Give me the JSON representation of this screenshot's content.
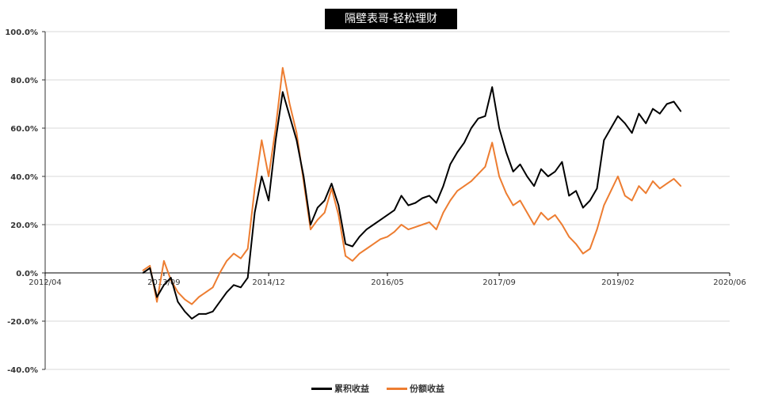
{
  "chart_data": {
    "type": "line",
    "title": "隔壁表哥-轻松理财",
    "xlabel": "",
    "ylabel": "",
    "ylim": [
      -40,
      100
    ],
    "y_ticks": [
      100,
      80,
      60,
      40,
      20,
      0,
      -20,
      -40
    ],
    "y_tick_labels": [
      "100.0%",
      "80.0%",
      "60.0%",
      "40.0%",
      "20.0%",
      "0.0%",
      "-20.0%",
      "-40.0%"
    ],
    "x_ticks": [
      "2012/04",
      "2013/09",
      "2014/12",
      "2016/05",
      "2017/09",
      "2019/02",
      "2020/06"
    ],
    "grid": "horizontal",
    "legend_position": "bottom",
    "colors": {
      "series_a": "#000000",
      "series_b": "#ED7D31",
      "grid": "#d9d9d9"
    },
    "series": [
      {
        "name": "累积收益",
        "color": "#000000",
        "x": [
          "2013/06",
          "2013/07",
          "2013/08",
          "2013/09",
          "2013/10",
          "2013/11",
          "2013/12",
          "2014/01",
          "2014/02",
          "2014/03",
          "2014/04",
          "2014/05",
          "2014/06",
          "2014/07",
          "2014/08",
          "2014/09",
          "2014/10",
          "2014/11",
          "2014/12",
          "2015/01",
          "2015/02",
          "2015/03",
          "2015/04",
          "2015/05",
          "2015/06",
          "2015/07",
          "2015/08",
          "2015/09",
          "2015/10",
          "2015/11",
          "2015/12",
          "2016/01",
          "2016/02",
          "2016/03",
          "2016/04",
          "2016/05",
          "2016/06",
          "2016/07",
          "2016/08",
          "2016/09",
          "2016/10",
          "2016/11",
          "2016/12",
          "2017/01",
          "2017/02",
          "2017/03",
          "2017/04",
          "2017/05",
          "2017/06",
          "2017/07",
          "2017/08",
          "2017/09",
          "2017/10",
          "2017/11",
          "2017/12",
          "2018/01",
          "2018/02",
          "2018/03",
          "2018/04",
          "2018/05",
          "2018/06",
          "2018/07",
          "2018/08",
          "2018/09",
          "2018/10",
          "2018/11",
          "2018/12",
          "2019/01",
          "2019/02",
          "2019/03",
          "2019/04",
          "2019/05",
          "2019/06",
          "2019/07",
          "2019/08",
          "2019/09",
          "2019/10",
          "2019/11"
        ],
        "values": [
          0,
          2,
          -10,
          -5,
          -2,
          -12,
          -16,
          -19,
          -17,
          -17,
          -16,
          -12,
          -8,
          -5,
          -6,
          -2,
          25,
          40,
          30,
          55,
          75,
          65,
          55,
          40,
          20,
          27,
          30,
          37,
          28,
          12,
          11,
          15,
          18,
          20,
          22,
          24,
          26,
          32,
          28,
          29,
          31,
          32,
          29,
          36,
          45,
          50,
          54,
          60,
          64,
          65,
          77,
          60,
          50,
          42,
          45,
          40,
          36,
          43,
          40,
          42,
          46,
          32,
          34,
          27,
          30,
          35,
          55,
          60,
          65,
          62,
          58,
          66,
          62,
          68,
          66,
          70,
          71,
          67
        ]
      },
      {
        "name": "份额收益",
        "color": "#ED7D31",
        "x": [
          "2013/06",
          "2013/07",
          "2013/08",
          "2013/09",
          "2013/10",
          "2013/11",
          "2013/12",
          "2014/01",
          "2014/02",
          "2014/03",
          "2014/04",
          "2014/05",
          "2014/06",
          "2014/07",
          "2014/08",
          "2014/09",
          "2014/10",
          "2014/11",
          "2014/12",
          "2015/01",
          "2015/02",
          "2015/03",
          "2015/04",
          "2015/05",
          "2015/06",
          "2015/07",
          "2015/08",
          "2015/09",
          "2015/10",
          "2015/11",
          "2015/12",
          "2016/01",
          "2016/02",
          "2016/03",
          "2016/04",
          "2016/05",
          "2016/06",
          "2016/07",
          "2016/08",
          "2016/09",
          "2016/10",
          "2016/11",
          "2016/12",
          "2017/01",
          "2017/02",
          "2017/03",
          "2017/04",
          "2017/05",
          "2017/06",
          "2017/07",
          "2017/08",
          "2017/09",
          "2017/10",
          "2017/11",
          "2017/12",
          "2018/01",
          "2018/02",
          "2018/03",
          "2018/04",
          "2018/05",
          "2018/06",
          "2018/07",
          "2018/08",
          "2018/09",
          "2018/10",
          "2018/11",
          "2018/12",
          "2019/01",
          "2019/02",
          "2019/03",
          "2019/04",
          "2019/05",
          "2019/06",
          "2019/07",
          "2019/08",
          "2019/09",
          "2019/10",
          "2019/11"
        ],
        "values": [
          1,
          3,
          -12,
          5,
          -3,
          -8,
          -11,
          -13,
          -10,
          -8,
          -6,
          0,
          5,
          8,
          6,
          10,
          35,
          55,
          40,
          60,
          85,
          70,
          58,
          38,
          18,
          22,
          25,
          35,
          24,
          7,
          5,
          8,
          10,
          12,
          14,
          15,
          17,
          20,
          18,
          19,
          20,
          21,
          18,
          25,
          30,
          34,
          36,
          38,
          41,
          44,
          54,
          40,
          33,
          28,
          30,
          25,
          20,
          25,
          22,
          24,
          20,
          15,
          12,
          8,
          10,
          18,
          28,
          34,
          40,
          32,
          30,
          36,
          33,
          38,
          35,
          37,
          39,
          36
        ]
      }
    ]
  }
}
